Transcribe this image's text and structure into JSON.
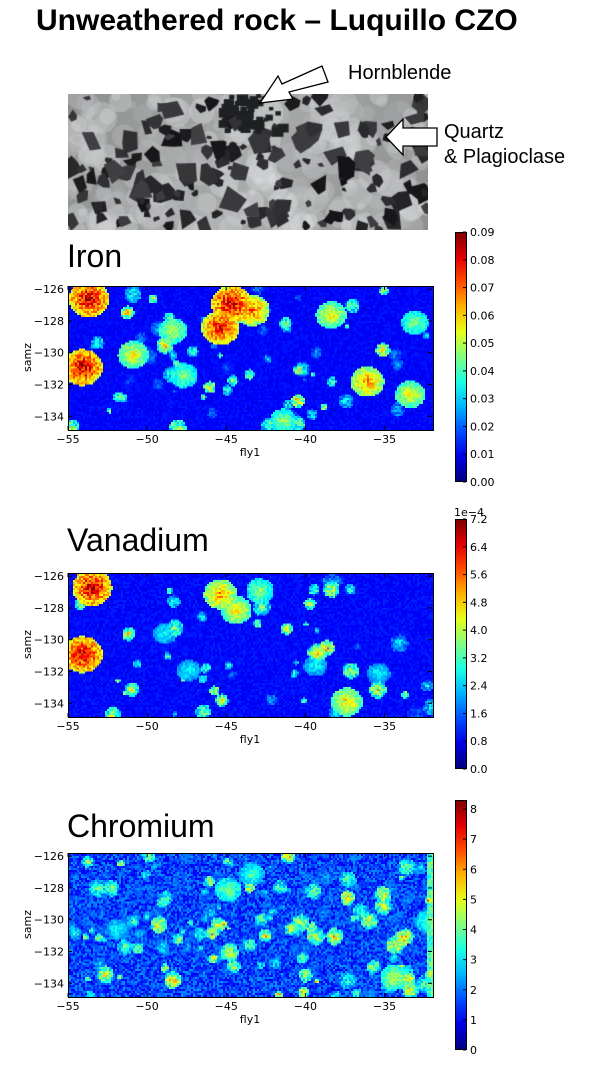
{
  "page": {
    "title": "Unweathered rock – Luquillo CZO",
    "callouts": {
      "hornblende": "Hornblende",
      "quartz_line1": "Quartz",
      "quartz_line2": "& Plagioclase"
    }
  },
  "chart_data": [
    {
      "type": "heatmap",
      "title": "Iron",
      "xlabel": "fly1",
      "ylabel": "samz",
      "xlim": [
        -55,
        -32
      ],
      "ylim": [
        -134.8,
        -125.8
      ],
      "xticks": [
        "−55",
        "−50",
        "−45",
        "−40",
        "−35"
      ],
      "xtick_values": [
        -55,
        -50,
        -45,
        -40,
        -35
      ],
      "yticks": [
        "−126",
        "−128",
        "−130",
        "−132",
        "−134"
      ],
      "ytick_values": [
        -126,
        -128,
        -130,
        -132,
        -134
      ],
      "colorbar": {
        "min": 0,
        "max": 0.09,
        "multiplier": "",
        "ticks": [
          "0.00",
          "0.01",
          "0.02",
          "0.03",
          "0.04",
          "0.05",
          "0.06",
          "0.07",
          "0.08",
          "0.09"
        ],
        "tick_values": [
          0,
          0.01,
          0.02,
          0.03,
          0.04,
          0.05,
          0.06,
          0.07,
          0.08,
          0.09
        ]
      },
      "colormap": "jet",
      "hotspots": [
        {
          "x": -44.8,
          "y": -126.8,
          "value": 0.09
        },
        {
          "x": -45.5,
          "y": -128.3,
          "value": 0.085
        },
        {
          "x": -43.5,
          "y": -127.2,
          "value": 0.075
        },
        {
          "x": -53.8,
          "y": -126.5,
          "value": 0.09
        },
        {
          "x": -54.2,
          "y": -130.8,
          "value": 0.09
        },
        {
          "x": -51.0,
          "y": -130.0,
          "value": 0.06
        },
        {
          "x": -48.5,
          "y": -128.5,
          "value": 0.055
        },
        {
          "x": -38.5,
          "y": -127.5,
          "value": 0.06
        },
        {
          "x": -36.2,
          "y": -131.7,
          "value": 0.07
        },
        {
          "x": -33.5,
          "y": -132.5,
          "value": 0.06
        },
        {
          "x": -33.2,
          "y": -128.0,
          "value": 0.05
        },
        {
          "x": -41.5,
          "y": -134.2,
          "value": 0.05
        },
        {
          "x": -47.8,
          "y": -131.3,
          "value": 0.05
        }
      ]
    },
    {
      "type": "heatmap",
      "title": "Vanadium",
      "xlabel": "fly1",
      "ylabel": "samz",
      "xlim": [
        -55,
        -32
      ],
      "ylim": [
        -134.8,
        -125.8
      ],
      "xticks": [
        "−55",
        "−50",
        "−45",
        "−40",
        "−35"
      ],
      "xtick_values": [
        -55,
        -50,
        -45,
        -40,
        -35
      ],
      "yticks": [
        "−126",
        "−128",
        "−130",
        "−132",
        "−134"
      ],
      "ytick_values": [
        -126,
        -128,
        -130,
        -132,
        -134
      ],
      "colorbar": {
        "min": 0,
        "max": 7.2,
        "multiplier": "1e−4",
        "ticks": [
          "0.0",
          "0.8",
          "1.6",
          "2.4",
          "3.2",
          "4.0",
          "4.8",
          "5.6",
          "6.4",
          "7.2"
        ],
        "tick_values": [
          0,
          0.8,
          1.6,
          2.4,
          3.2,
          4.0,
          4.8,
          5.6,
          6.4,
          7.2
        ]
      },
      "colormap": "jet",
      "hotspots": [
        {
          "x": -53.6,
          "y": -126.6,
          "value": 7.2
        },
        {
          "x": -54.2,
          "y": -130.8,
          "value": 7.2
        },
        {
          "x": -45.5,
          "y": -127.0,
          "value": 5.5
        },
        {
          "x": -44.5,
          "y": -128.0,
          "value": 5.0
        },
        {
          "x": -43.0,
          "y": -126.8,
          "value": 4.0
        },
        {
          "x": -49.0,
          "y": -129.5,
          "value": 3.0
        },
        {
          "x": -37.5,
          "y": -133.8,
          "value": 5.0
        },
        {
          "x": -47.5,
          "y": -131.8,
          "value": 3.0
        },
        {
          "x": -39.5,
          "y": -131.5,
          "value": 3.0
        },
        {
          "x": -35.5,
          "y": -132.0,
          "value": 3.0
        }
      ]
    },
    {
      "type": "heatmap",
      "title": "Chromium",
      "xlabel": "fly1",
      "ylabel": "samz",
      "xlim": [
        -55,
        -32
      ],
      "ylim": [
        -134.8,
        -125.8
      ],
      "xticks": [
        "−55",
        "−50",
        "−45",
        "−40",
        "−35"
      ],
      "xtick_values": [
        -55,
        -50,
        -45,
        -40,
        -35
      ],
      "yticks": [
        "−126",
        "−128",
        "−130",
        "−132",
        "−134"
      ],
      "ytick_values": [
        -126,
        -128,
        -130,
        -132,
        -134
      ],
      "colorbar": {
        "min": 0,
        "max": 8.3,
        "multiplier": "",
        "ticks": [
          "0",
          "1",
          "2",
          "3",
          "4",
          "5",
          "6",
          "7",
          "8"
        ],
        "tick_values": [
          0,
          1,
          2,
          3,
          4,
          5,
          6,
          7,
          8
        ]
      },
      "colormap": "jet",
      "hotspots": [
        {
          "x": -45.0,
          "y": -128.0,
          "value": 4.5
        },
        {
          "x": -43.5,
          "y": -127.0,
          "value": 4.0
        },
        {
          "x": -52.0,
          "y": -130.5,
          "value": 3.5
        },
        {
          "x": -32.4,
          "y": -130.0,
          "value": 4.0
        },
        {
          "x": -34.5,
          "y": -133.5,
          "value": 5.0
        }
      ]
    }
  ]
}
